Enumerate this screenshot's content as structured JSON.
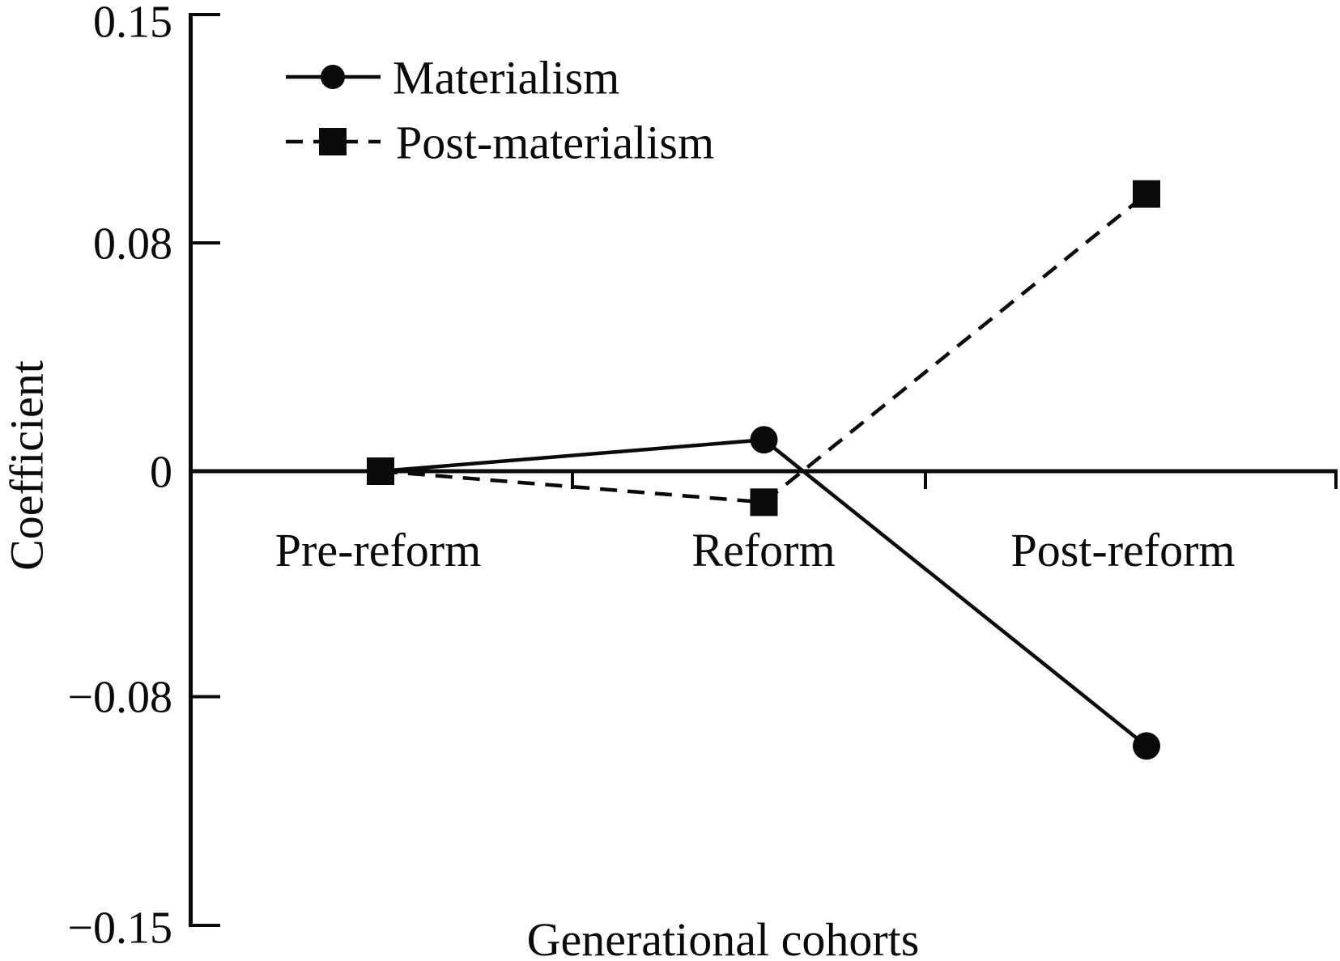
{
  "chart_data": {
    "type": "line",
    "title": "",
    "xlabel": "Generational cohorts",
    "ylabel": "Coefficient",
    "categories": [
      "Pre-reform",
      "Reform",
      "Post-reform"
    ],
    "series": [
      {
        "name": "Materialism",
        "line_style": "solid",
        "marker": "circle",
        "values": [
          0,
          0.011,
          -0.095
        ]
      },
      {
        "name": "Post-materialism",
        "line_style": "dashed",
        "marker": "square",
        "values": [
          0,
          -0.011,
          0.095
        ]
      }
    ],
    "y_ticks": [
      0.15,
      0.08,
      0,
      -0.08,
      -0.15
    ],
    "y_tick_labels": [
      "0.15",
      "0.08",
      "0",
      "−0.08",
      "−0.15"
    ],
    "ylim": [
      -0.15,
      0.15
    ],
    "grid": false,
    "legend_position": "top-left-inside",
    "colors": {
      "foreground": "#0a0a0a",
      "background": "#ffffff"
    }
  }
}
